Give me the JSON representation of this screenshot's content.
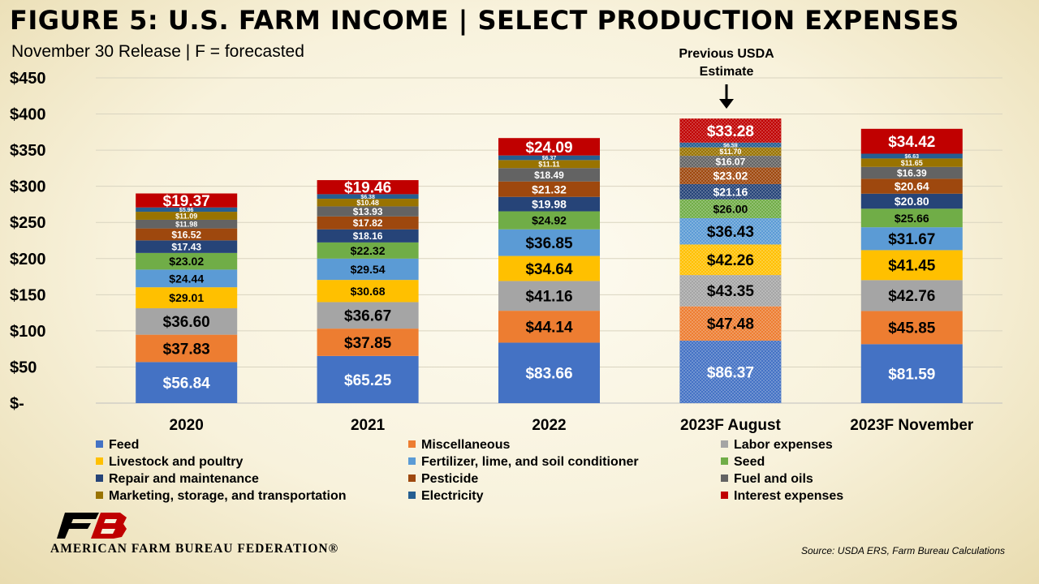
{
  "header": {
    "title": "FIGURE 5: U.S. FARM INCOME | SELECT PRODUCTION EXPENSES",
    "subtitle": "November 30 Release | F = forecasted"
  },
  "annotation": {
    "text_line1": "Previous USDA",
    "text_line2": "Estimate",
    "target_category": "2023F August"
  },
  "chart_data": {
    "type": "bar",
    "stacked": true,
    "categories": [
      "2020",
      "2021",
      "2022",
      "2023F August",
      "2023F November"
    ],
    "ylim": [
      0,
      450
    ],
    "yticks": [
      0,
      50,
      100,
      150,
      200,
      250,
      300,
      350,
      400,
      450
    ],
    "ytick_labels": [
      "$-",
      "$50",
      "$100",
      "$150",
      "$200",
      "$250",
      "$300",
      "$350",
      "$400",
      "$450"
    ],
    "grid": true,
    "legend_position": "bottom",
    "patterned_category": "2023F August",
    "series": [
      {
        "name": "Feed",
        "color": "#4472C4",
        "label_color": "#ffffff",
        "values": [
          56.84,
          65.25,
          83.66,
          86.37,
          81.59
        ]
      },
      {
        "name": "Miscellaneous",
        "color": "#ED7D31",
        "label_color": "#000000",
        "values": [
          37.83,
          37.85,
          44.14,
          47.48,
          45.85
        ]
      },
      {
        "name": "Labor expenses",
        "color": "#A5A5A5",
        "label_color": "#000000",
        "values": [
          36.6,
          36.67,
          41.16,
          43.35,
          42.76
        ]
      },
      {
        "name": "Livestock and poultry",
        "color": "#FFC000",
        "label_color": "#000000",
        "values": [
          29.01,
          30.68,
          34.64,
          42.26,
          41.45
        ]
      },
      {
        "name": "Fertilizer, lime, and soil conditioner",
        "color": "#5B9BD5",
        "label_color": "#000000",
        "values": [
          24.44,
          29.54,
          36.85,
          36.43,
          31.67
        ]
      },
      {
        "name": "Seed",
        "color": "#70AD47",
        "label_color": "#000000",
        "values": [
          23.02,
          22.32,
          24.92,
          26.0,
          25.66
        ]
      },
      {
        "name": "Repair and maintenance",
        "color": "#264478",
        "label_color": "#ffffff",
        "values": [
          17.43,
          18.16,
          19.98,
          21.16,
          20.8
        ]
      },
      {
        "name": "Pesticide",
        "color": "#9E480E",
        "label_color": "#ffffff",
        "values": [
          16.52,
          17.82,
          21.32,
          23.02,
          20.64
        ]
      },
      {
        "name": "Fuel and oils",
        "color": "#636363",
        "label_color": "#ffffff",
        "values": [
          11.98,
          13.93,
          18.49,
          16.07,
          16.39
        ]
      },
      {
        "name": "Marketing, storage, and transportation",
        "color": "#997300",
        "label_color": "#ffffff",
        "values": [
          11.09,
          10.48,
          11.11,
          11.7,
          11.65
        ]
      },
      {
        "name": "Electricity",
        "color": "#255E91",
        "label_color": "#ffffff",
        "values": [
          5.96,
          6.38,
          6.37,
          6.59,
          6.63
        ]
      },
      {
        "name": "Interest expenses",
        "color": "#C00000",
        "label_color": "#ffffff",
        "values": [
          19.37,
          19.46,
          24.09,
          33.28,
          34.42
        ]
      }
    ]
  },
  "logo": {
    "mark": "FB",
    "name": "AMERICAN FARM BUREAU FEDERATION®"
  },
  "source": "Source:  USDA ERS, Farm Bureau Calculations"
}
